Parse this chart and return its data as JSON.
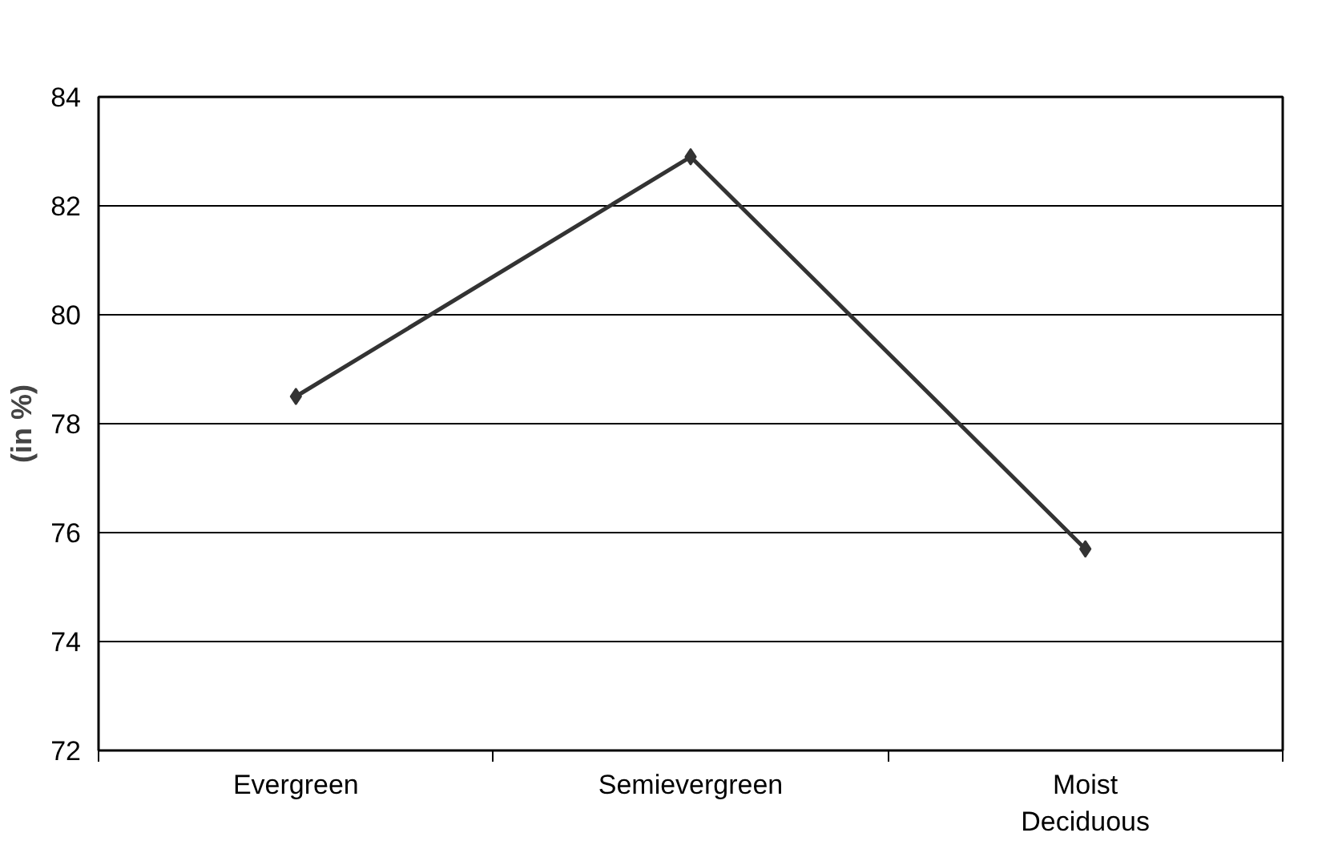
{
  "chart_data": {
    "type": "line",
    "ylabel": "(in %)",
    "categories": [
      "Evergreen",
      "Semievergreen",
      "Moist\nDeciduous"
    ],
    "series": [
      {
        "color": "#333333",
        "values": [
          78.5,
          82.9,
          75.7
        ]
      }
    ],
    "ylim": [
      72,
      84
    ],
    "yticks": [
      72,
      74,
      76,
      78,
      80,
      82,
      84
    ],
    "grid": "y",
    "marker": "diamond",
    "line_style": "solid"
  }
}
